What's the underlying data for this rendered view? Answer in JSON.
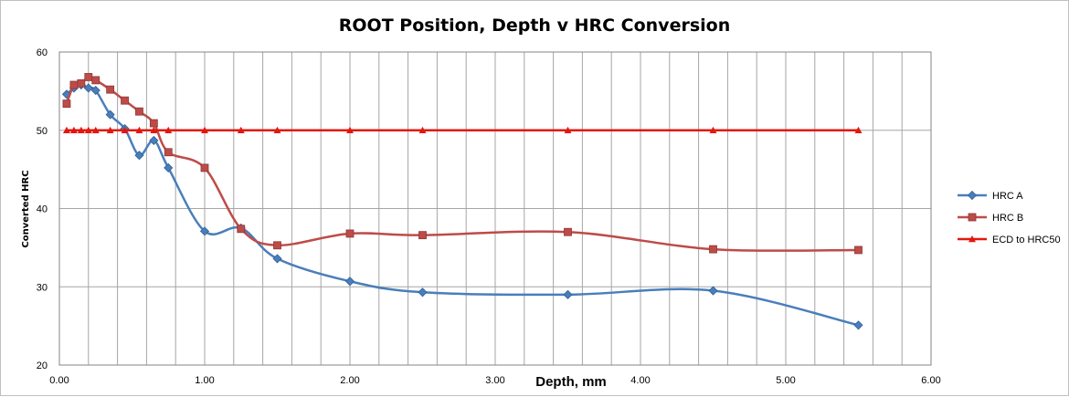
{
  "chart_data": {
    "type": "line",
    "title": "ROOT Position,  Depth v HRC Conversion",
    "xlabel": "Depth, mm",
    "ylabel": "Converted HRC",
    "xlim": [
      0,
      6
    ],
    "ylim": [
      20,
      60
    ],
    "x_ticks": [
      "0.00",
      "1.00",
      "2.00",
      "3.00",
      "4.00",
      "5.00",
      "6.00"
    ],
    "y_ticks": [
      "20",
      "30",
      "40",
      "50",
      "60"
    ],
    "grid": true,
    "legend_position": "right",
    "series": [
      {
        "name": "HRC A",
        "color": "#4a7ebb",
        "marker": "diamond",
        "smooth": true,
        "x": [
          0.05,
          0.1,
          0.15,
          0.2,
          0.25,
          0.35,
          0.45,
          0.55,
          0.65,
          0.75,
          1.0,
          1.25,
          1.5,
          2.0,
          2.5,
          3.5,
          4.5,
          5.5
        ],
        "y": [
          54.6,
          55.4,
          55.8,
          55.4,
          55.1,
          52.0,
          50.2,
          46.8,
          48.7,
          45.2,
          37.1,
          37.5,
          33.6,
          30.7,
          29.3,
          29.0,
          29.5,
          25.1
        ]
      },
      {
        "name": "HRC B",
        "color": "#be4b48",
        "marker": "square",
        "smooth": true,
        "x": [
          0.05,
          0.1,
          0.15,
          0.2,
          0.25,
          0.35,
          0.45,
          0.55,
          0.65,
          0.75,
          1.0,
          1.25,
          1.5,
          2.0,
          2.5,
          3.5,
          4.5,
          5.5
        ],
        "y": [
          53.4,
          55.8,
          56.0,
          56.8,
          56.4,
          55.2,
          53.8,
          52.4,
          50.9,
          47.2,
          45.2,
          37.4,
          35.3,
          36.8,
          36.6,
          37.0,
          34.8,
          34.7
        ]
      },
      {
        "name": "ECD to HRC50",
        "color": "#e3170d",
        "marker": "triangle",
        "smooth": false,
        "x": [
          0.05,
          0.1,
          0.15,
          0.2,
          0.25,
          0.35,
          0.45,
          0.55,
          0.65,
          0.75,
          1.0,
          1.25,
          1.5,
          2.0,
          2.5,
          3.5,
          4.5,
          5.5
        ],
        "y": [
          50,
          50,
          50,
          50,
          50,
          50,
          50,
          50,
          50,
          50,
          50,
          50,
          50,
          50,
          50,
          50,
          50,
          50
        ]
      }
    ]
  }
}
